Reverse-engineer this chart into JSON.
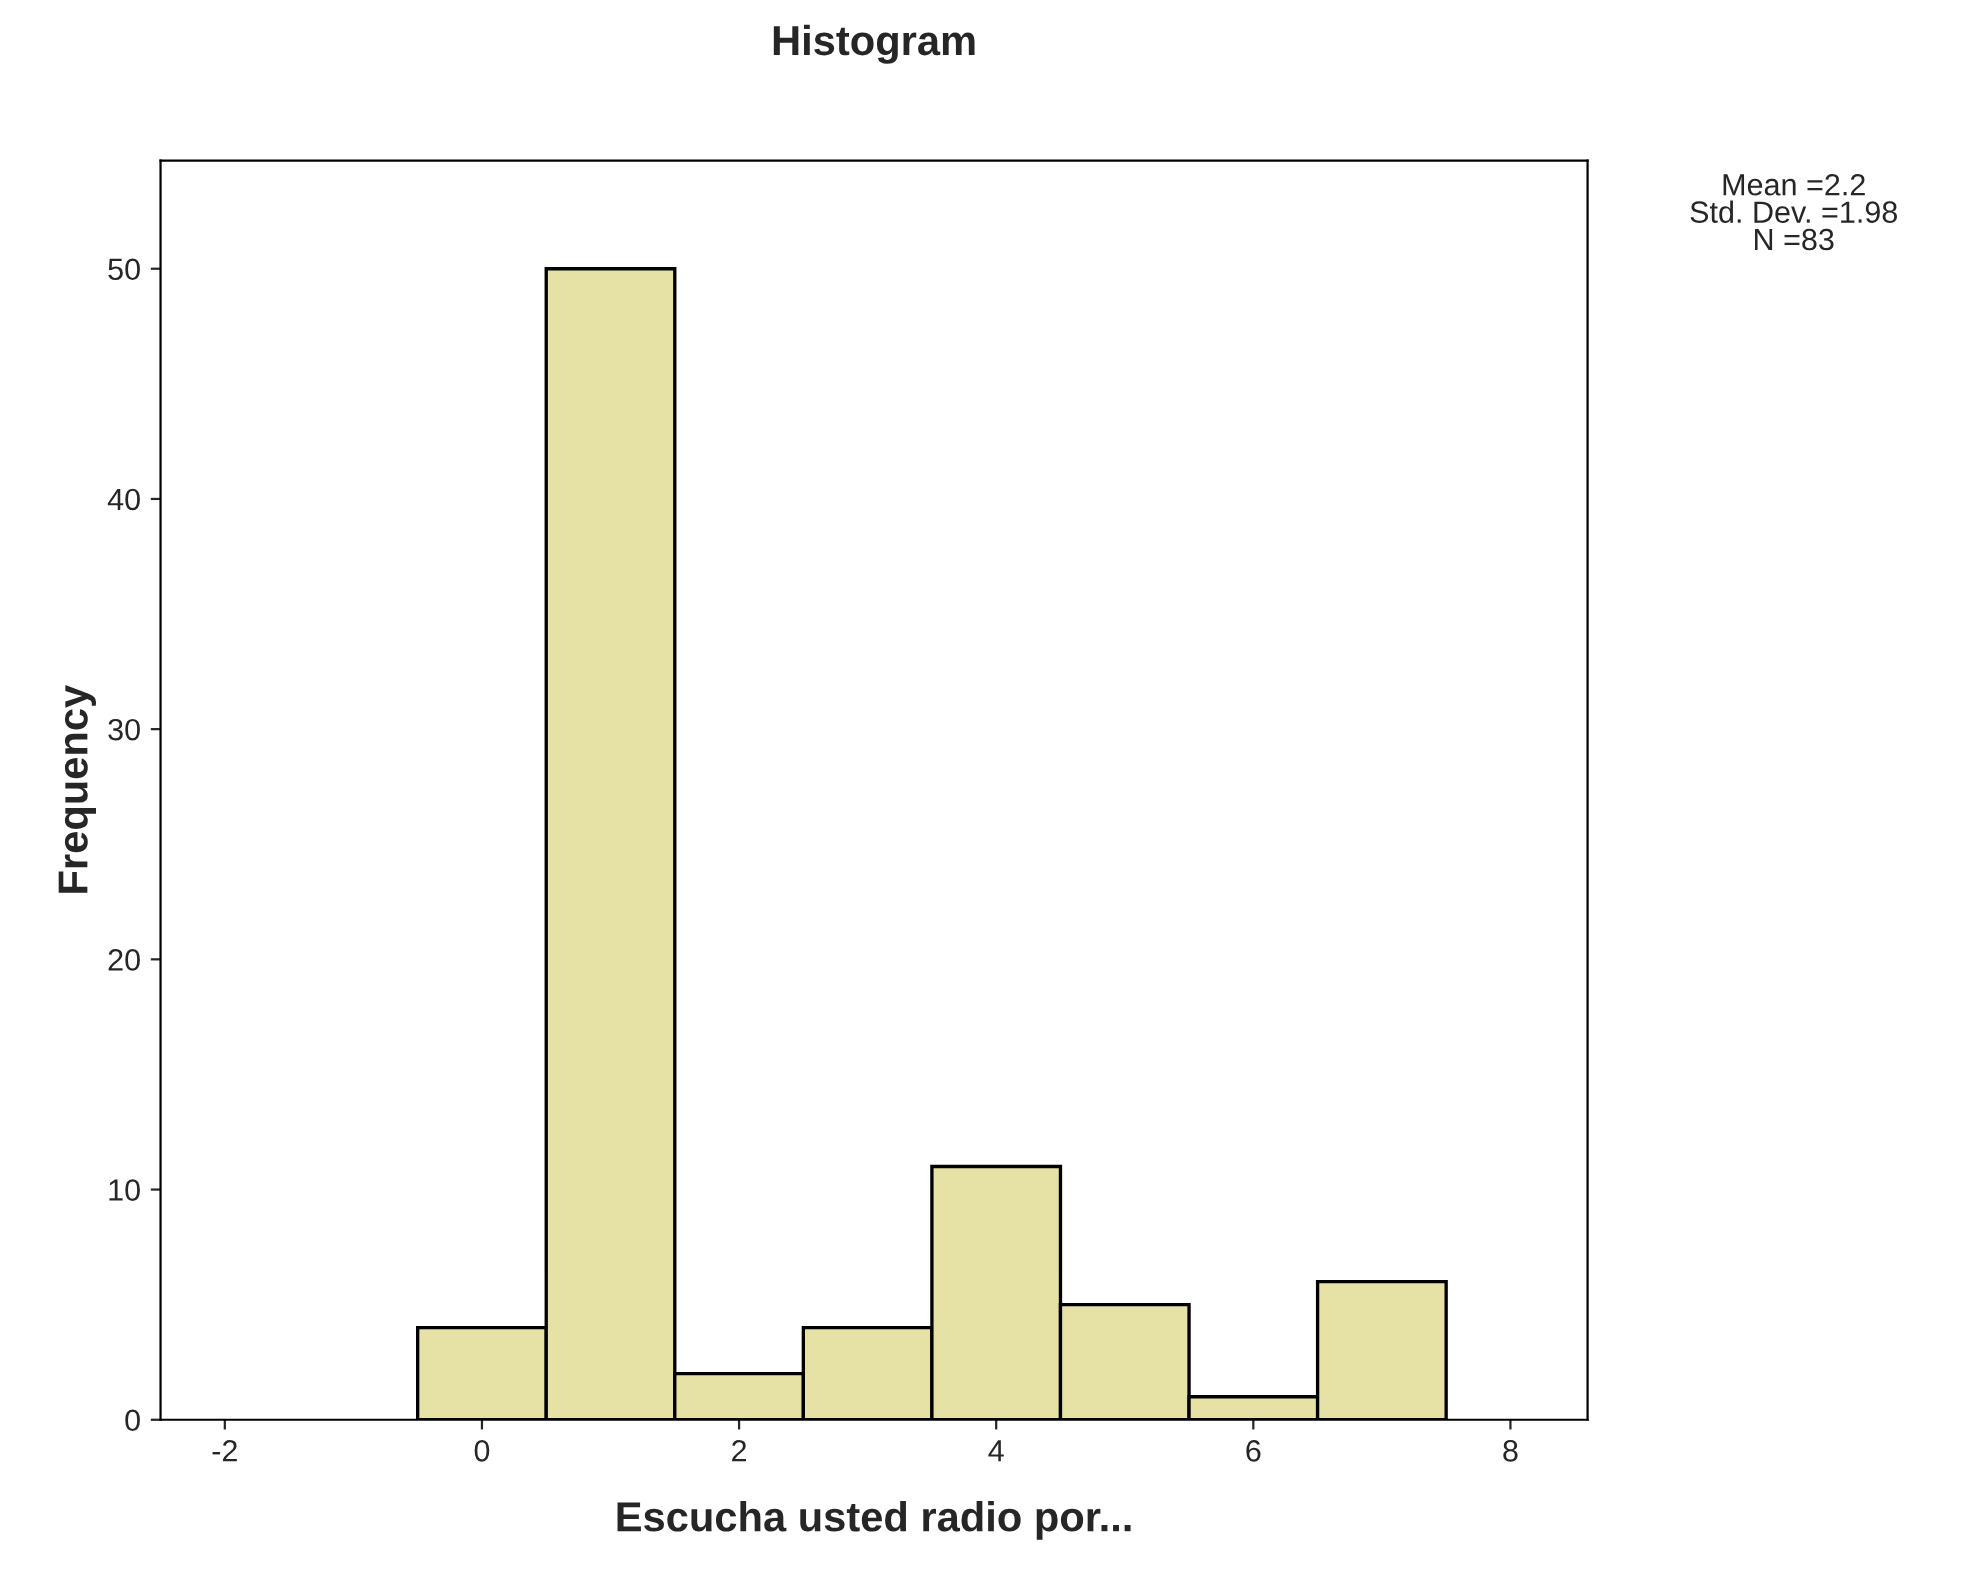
{
  "chart_data": {
    "type": "histogram",
    "title": "Histogram",
    "xlabel": "Escucha usted radio por...",
    "ylabel": "Frequency",
    "bins": [
      -0.5,
      0.5,
      1.5,
      2.5,
      3.5,
      4.5,
      5.5,
      6.5,
      7.5
    ],
    "values": [
      4,
      50,
      2,
      4,
      11,
      5,
      1,
      6
    ],
    "color": "#e6e2a6",
    "xlim": [
      -2.5,
      8.6
    ],
    "xticks": [
      -2,
      0,
      2,
      4,
      6,
      8
    ],
    "ylim": [
      0,
      54.7
    ],
    "yticks": [
      0,
      10,
      20,
      30,
      40,
      50
    ],
    "grid": false,
    "annotations": [
      "Mean =2.2\nStd. Dev. =1.98\nN =83"
    ]
  }
}
